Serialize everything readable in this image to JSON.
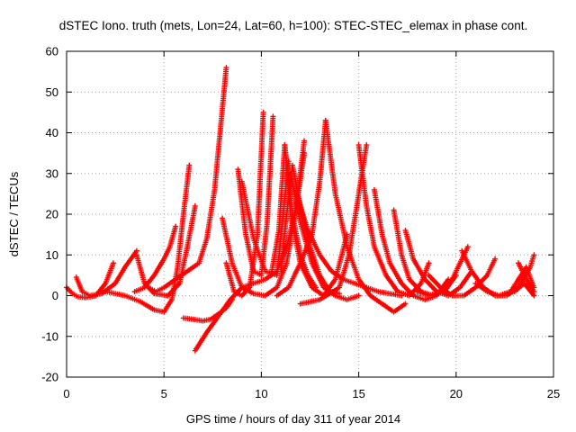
{
  "chart_data": {
    "type": "scatter",
    "title": "dSTEC Iono. truth (mets, Lon=24, Lat=60, h=100): STEC-STEC_elemax in phase cont.",
    "xlabel": "GPS time / hours of day 311 of year 2014",
    "ylabel": "dSTEC  / TECUs",
    "xlim": [
      0,
      25
    ],
    "ylim": [
      -20,
      60
    ],
    "xticks": [
      0,
      5,
      10,
      15,
      20,
      25
    ],
    "yticks": [
      -20,
      -10,
      0,
      10,
      20,
      30,
      40,
      50,
      60
    ],
    "grid": true,
    "marker": "plus",
    "color": "#ff0000",
    "series": [
      {
        "x": [
          0.0,
          0.3,
          0.6,
          1.0,
          1.5,
          2.0,
          2.4
        ],
        "y": [
          2,
          0.5,
          -0.3,
          -0.5,
          0,
          3,
          8
        ]
      },
      {
        "x": [
          0.5,
          0.8,
          1.2,
          1.8,
          2.5,
          3.0,
          3.6
        ],
        "y": [
          4.5,
          1,
          0,
          0.5,
          3,
          7,
          11
        ]
      },
      {
        "x": [
          2.0,
          3.0,
          3.8,
          4.5,
          5.0,
          5.4,
          5.7,
          6.0,
          6.3
        ],
        "y": [
          1,
          0,
          -1.5,
          -3.5,
          -4,
          -1,
          7,
          20,
          32
        ]
      },
      {
        "x": [
          3.6,
          4.0,
          4.5,
          5.2,
          5.8,
          6.2,
          6.6
        ],
        "y": [
          10,
          3,
          0.5,
          0,
          3,
          12,
          22
        ]
      },
      {
        "x": [
          4.2,
          4.6,
          5.0,
          5.6,
          6.2,
          6.8,
          7.2,
          7.6,
          8.0,
          8.2
        ],
        "y": [
          2,
          1,
          2,
          4,
          6,
          8,
          14,
          26,
          46,
          56
        ]
      },
      {
        "x": [
          3.5,
          4.0,
          4.5,
          5.0,
          5.3,
          5.6
        ],
        "y": [
          1,
          2,
          5,
          9,
          12,
          17
        ]
      },
      {
        "x": [
          6.0,
          6.5,
          7.0,
          7.4,
          7.8,
          8.2,
          8.5
        ],
        "y": [
          -5.5,
          -5.8,
          -6.2,
          -5.8,
          -4.5,
          -3,
          -1
        ]
      },
      {
        "x": [
          6.6,
          7.2,
          7.8,
          8.4,
          9.0,
          9.6,
          10.2,
          10.8,
          11.3,
          11.8,
          12.2
        ],
        "y": [
          -13.5,
          -9,
          -5,
          -1,
          2,
          3,
          4,
          6,
          12,
          22,
          35
        ]
      },
      {
        "x": [
          8.0,
          8.5,
          9.0,
          9.6,
          10.2,
          10.8,
          11.3,
          11.8,
          12.2
        ],
        "y": [
          19,
          8,
          2,
          0.5,
          0,
          2,
          8,
          22,
          38
        ]
      },
      {
        "x": [
          8.2,
          8.6,
          9.0,
          9.4,
          9.8,
          10.1
        ],
        "y": [
          8,
          1,
          0,
          2,
          15,
          45
        ]
      },
      {
        "x": [
          8.8,
          9.2,
          9.6,
          10.0,
          10.3,
          10.6
        ],
        "y": [
          31,
          15,
          6,
          5,
          18,
          44
        ]
      },
      {
        "x": [
          9.0,
          9.6,
          10.2,
          10.8,
          11.4
        ],
        "y": [
          28,
          14,
          6,
          5,
          33
        ]
      },
      {
        "x": [
          10.5,
          10.9,
          11.2,
          11.5,
          12.0,
          12.6,
          13.2,
          13.8,
          14.4
        ],
        "y": [
          5,
          16,
          37,
          20,
          8,
          2,
          0,
          4,
          15
        ]
      },
      {
        "x": [
          11.0,
          11.3,
          11.6,
          12.0,
          12.5,
          13.0,
          13.5,
          14.0
        ],
        "y": [
          6,
          20,
          32,
          22,
          12,
          5,
          1,
          0.5
        ]
      },
      {
        "x": [
          11.5,
          12.0,
          12.6,
          13.2,
          13.8,
          14.4,
          15.0
        ],
        "y": [
          30,
          18,
          8,
          2,
          0,
          -1,
          0
        ]
      },
      {
        "x": [
          11.8,
          12.4,
          13.0,
          13.6,
          14.2,
          14.8,
          15.4,
          16.0,
          16.6,
          17.2
        ],
        "y": [
          25,
          16,
          10,
          6,
          4,
          3,
          2,
          1,
          0.5,
          0
        ]
      },
      {
        "x": [
          11.2,
          11.6,
          12.0,
          12.4,
          12.8
        ],
        "y": [
          37,
          20,
          10,
          5,
          2
        ]
      },
      {
        "x": [
          10.8,
          11.4,
          12.0,
          12.6,
          13.0,
          13.3
        ],
        "y": [
          0,
          2,
          8,
          15,
          28,
          43
        ]
      },
      {
        "x": [
          13.3,
          13.8,
          14.4,
          15.0,
          15.6,
          16.2,
          16.8,
          17.4
        ],
        "y": [
          43,
          25,
          12,
          4,
          0,
          -2,
          -4,
          -2
        ]
      },
      {
        "x": [
          12.0,
          13.0,
          14.0,
          14.5,
          15.0,
          15.4
        ],
        "y": [
          -2,
          -1,
          2,
          10,
          25,
          37
        ]
      },
      {
        "x": [
          15.0,
          15.4,
          15.8,
          16.4,
          17.0,
          17.6,
          18.2,
          18.6
        ],
        "y": [
          37,
          22,
          12,
          5,
          1,
          0,
          3,
          8
        ]
      },
      {
        "x": [
          15.8,
          16.2,
          16.6,
          17.2,
          17.8,
          18.4,
          19.0,
          19.6
        ],
        "y": [
          26,
          15,
          8,
          3,
          0,
          -1,
          0,
          4
        ]
      },
      {
        "x": [
          16.8,
          17.2,
          17.6,
          18.2,
          18.8,
          19.4,
          20.0
        ],
        "y": [
          21,
          10,
          4,
          1,
          0,
          1,
          5
        ]
      },
      {
        "x": [
          17.4,
          17.8,
          18.4,
          19.0,
          19.6,
          20.2,
          20.8
        ],
        "y": [
          16,
          9,
          4,
          1,
          0,
          2,
          6
        ]
      },
      {
        "x": [
          18.0,
          18.6,
          19.2,
          19.8,
          20.2,
          20.6
        ],
        "y": [
          1,
          0,
          1,
          4,
          8,
          12
        ]
      },
      {
        "x": [
          18.6,
          19.2,
          19.8,
          20.4,
          21.0,
          21.6,
          22.0
        ],
        "y": [
          5,
          2,
          0,
          0,
          2,
          5,
          9
        ]
      },
      {
        "x": [
          20.3,
          20.8,
          21.4,
          22.0,
          22.6,
          23.2,
          23.8,
          24.0
        ],
        "y": [
          11,
          6,
          2,
          0,
          0,
          2,
          7,
          10
        ]
      },
      {
        "x": [
          21.0,
          21.6,
          22.2,
          22.8,
          23.2,
          23.6,
          24.0
        ],
        "y": [
          3,
          1,
          0,
          1,
          4,
          7,
          2
        ]
      },
      {
        "x": [
          22.5,
          23.0,
          23.5,
          24.0
        ],
        "y": [
          0.5,
          1,
          3,
          0
        ]
      },
      {
        "x": [
          23.2,
          23.6,
          24.0
        ],
        "y": [
          8,
          4,
          1
        ]
      }
    ]
  }
}
